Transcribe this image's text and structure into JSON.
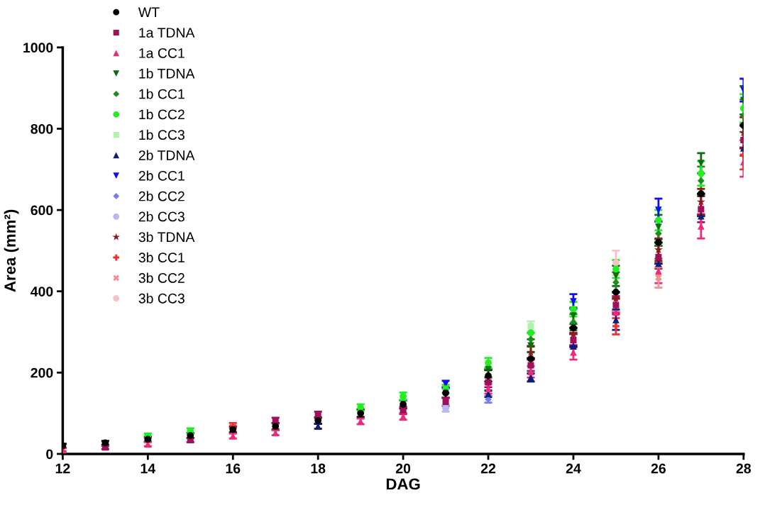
{
  "chart_data": {
    "type": "scatter",
    "xlabel": "DAG",
    "ylabel": "Area (mm²)",
    "x": [
      12,
      13,
      14,
      15,
      16,
      17,
      18,
      19,
      20,
      21,
      22,
      23,
      24,
      25,
      26,
      27,
      28
    ],
    "xlim": [
      12,
      28
    ],
    "xticks": [
      12,
      14,
      16,
      18,
      20,
      22,
      24,
      26,
      28
    ],
    "ylim": [
      0,
      1000
    ],
    "yticks": [
      0,
      200,
      400,
      600,
      800,
      1000
    ],
    "grid": false,
    "legend": "top left",
    "series": [
      {
        "name": "WT",
        "color": "#000000",
        "marker": "circle",
        "values": [
          20,
          27,
          36,
          45,
          60,
          68,
          82,
          100,
          122,
          150,
          192,
          234,
          310,
          398,
          520,
          640,
          808
        ],
        "errors": [
          5,
          5,
          6,
          6,
          7,
          8,
          8,
          9,
          10,
          12,
          14,
          null,
          null,
          null,
          null,
          null,
          null
        ]
      },
      {
        "name": "1a TDNA",
        "color": "#a0105a",
        "marker": "square",
        "values": [
          null,
          16,
          null,
          34,
          null,
          82,
          96,
          null,
          107,
          128,
          176,
          218,
          280,
          366,
          484,
          602,
          772
        ],
        "errors": [
          null,
          4,
          null,
          5,
          null,
          7,
          8,
          null,
          9,
          10,
          12,
          14,
          18,
          22,
          28,
          32,
          38
        ]
      },
      {
        "name": "1a CC1",
        "color": "#ee2a7b",
        "marker": "triangle",
        "values": [
          10,
          null,
          24,
          null,
          44,
          52,
          null,
          80,
          92,
          null,
          160,
          202,
          250,
          348,
          450,
          560,
          718
        ],
        "errors": [
          4,
          null,
          5,
          null,
          6,
          6,
          null,
          7,
          8,
          null,
          12,
          14,
          18,
          null,
          30,
          30,
          36
        ]
      },
      {
        "name": "1b TDNA",
        "color": "#0a6e0a",
        "marker": "triangle_down",
        "values": [
          null,
          null,
          null,
          null,
          null,
          null,
          null,
          null,
          null,
          null,
          208,
          266,
          340,
          438,
          558,
          715,
          870
        ],
        "errors": [
          null,
          null,
          null,
          null,
          null,
          null,
          null,
          null,
          null,
          null,
          null,
          16,
          20,
          25,
          30,
          25,
          35
        ]
      },
      {
        "name": "1b CC1",
        "color": "#1e8c1e",
        "marker": "diamond",
        "values": [
          null,
          null,
          null,
          null,
          null,
          null,
          null,
          null,
          null,
          null,
          null,
          282,
          324,
          422,
          542,
          672,
          832
        ],
        "errors": [
          null,
          null,
          null,
          null,
          null,
          null,
          null,
          null,
          null,
          null,
          null,
          16,
          20,
          25,
          30,
          35,
          40
        ]
      },
      {
        "name": "1b CC2",
        "color": "#22ee22",
        "marker": "circle",
        "values": [
          null,
          null,
          44,
          56,
          null,
          null,
          null,
          114,
          142,
          160,
          224,
          298,
          356,
          455,
          575,
          690,
          850
        ],
        "errors": [
          null,
          null,
          6,
          7,
          null,
          null,
          null,
          8,
          9,
          10,
          12,
          null,
          18,
          22,
          25,
          30,
          35
        ]
      },
      {
        "name": "1b CC3",
        "color": "#b0f0b0",
        "marker": "square",
        "values": [
          null,
          null,
          null,
          null,
          null,
          null,
          null,
          null,
          null,
          null,
          null,
          314,
          null,
          null,
          null,
          null,
          null
        ],
        "errors": [
          null,
          null,
          null,
          null,
          null,
          null,
          null,
          null,
          null,
          null,
          null,
          12,
          null,
          null,
          null,
          null,
          null
        ]
      },
      {
        "name": "2b TDNA",
        "color": "#0a1e7a",
        "marker": "triangle",
        "values": [
          null,
          null,
          null,
          null,
          null,
          null,
          68,
          null,
          null,
          null,
          148,
          188,
          265,
          330,
          468,
          585,
          752
        ],
        "errors": [
          null,
          null,
          null,
          null,
          null,
          null,
          6,
          null,
          null,
          null,
          8,
          10,
          null,
          25,
          null,
          null,
          null
        ]
      },
      {
        "name": "2b CC1",
        "color": "#1010ee",
        "marker": "triangle_down",
        "values": [
          null,
          null,
          null,
          null,
          null,
          null,
          null,
          null,
          null,
          172,
          null,
          null,
          375,
          null,
          600,
          null,
          895
        ],
        "errors": [
          null,
          null,
          null,
          null,
          null,
          null,
          null,
          null,
          null,
          8,
          null,
          null,
          18,
          null,
          28,
          null,
          28
        ]
      },
      {
        "name": "2b CC2",
        "color": "#7b7bee",
        "marker": "diamond",
        "values": [
          null,
          null,
          null,
          null,
          null,
          null,
          null,
          null,
          null,
          null,
          134,
          null,
          null,
          null,
          null,
          null,
          null
        ],
        "errors": [
          null,
          null,
          null,
          null,
          null,
          null,
          null,
          null,
          null,
          null,
          8,
          null,
          null,
          null,
          null,
          null,
          null
        ]
      },
      {
        "name": "2b CC3",
        "color": "#b8b8f0",
        "marker": "circle",
        "values": [
          null,
          null,
          null,
          null,
          null,
          null,
          null,
          null,
          null,
          112,
          null,
          null,
          null,
          null,
          null,
          null,
          null
        ],
        "errors": [
          null,
          null,
          null,
          null,
          null,
          null,
          null,
          null,
          null,
          8,
          null,
          null,
          null,
          null,
          null,
          null,
          null
        ]
      },
      {
        "name": "3b TDNA",
        "color": "#8b1a1a",
        "marker": "star",
        "values": [
          null,
          null,
          null,
          null,
          null,
          null,
          null,
          null,
          null,
          null,
          null,
          250,
          295,
          382,
          502,
          620,
          790
        ],
        "errors": [
          null,
          null,
          null,
          null,
          null,
          null,
          null,
          null,
          null,
          null,
          null,
          14,
          null,
          null,
          28,
          32,
          38
        ]
      },
      {
        "name": "3b CC1",
        "color": "#ee3030",
        "marker": "plus",
        "values": [
          null,
          null,
          null,
          null,
          70,
          null,
          null,
          null,
          null,
          null,
          null,
          null,
          null,
          314,
          null,
          null,
          736
        ],
        "errors": [
          null,
          null,
          null,
          null,
          6,
          null,
          null,
          null,
          null,
          null,
          null,
          null,
          null,
          20,
          null,
          null,
          36
        ]
      },
      {
        "name": "3b CC2",
        "color": "#f09090",
        "marker": "x",
        "values": [
          null,
          null,
          null,
          null,
          null,
          null,
          null,
          null,
          null,
          null,
          null,
          null,
          null,
          null,
          434,
          null,
          null
        ],
        "errors": [
          null,
          null,
          null,
          null,
          null,
          null,
          null,
          null,
          null,
          null,
          null,
          null,
          null,
          null,
          25,
          null,
          null
        ]
      },
      {
        "name": "3b CC3",
        "color": "#f8c0c8",
        "marker": "circle",
        "values": [
          null,
          null,
          null,
          null,
          null,
          null,
          null,
          null,
          null,
          null,
          null,
          null,
          null,
          470,
          null,
          null,
          null
        ],
        "errors": [
          null,
          null,
          null,
          null,
          null,
          null,
          null,
          null,
          null,
          null,
          null,
          null,
          null,
          30,
          null,
          null,
          null
        ]
      }
    ]
  }
}
